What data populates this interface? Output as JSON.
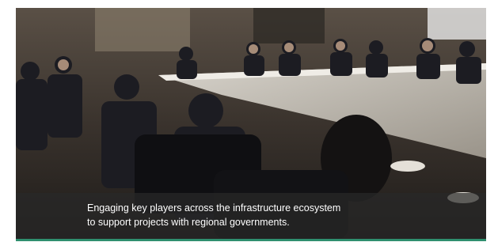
{
  "caption": {
    "lines": [
      "Engaging key players across the infrastructure ecosystem",
      "to support projects with regional governments."
    ]
  }
}
